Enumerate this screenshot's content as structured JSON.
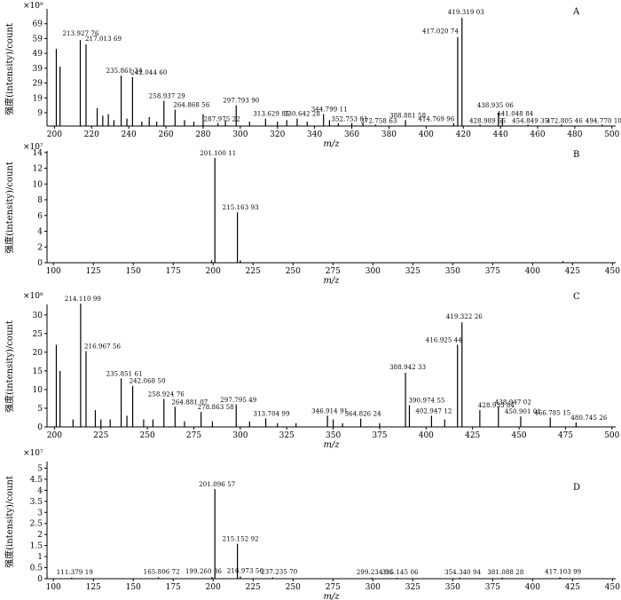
{
  "chart_data": [
    {
      "type": "bar",
      "panel": "A",
      "exponent_label": "×10⁹",
      "ylabel": "强度(intensity)/count",
      "xlabel": "m/z",
      "xlim": [
        196,
        502
      ],
      "ylim": [
        0,
        79
      ],
      "x_ticks": [
        "200",
        "220",
        "240",
        "260",
        "280",
        "300",
        "320",
        "340",
        "360",
        "380",
        "400",
        "420",
        "440",
        "460",
        "480",
        "500"
      ],
      "y_ticks": [
        "9",
        "19",
        "29",
        "39",
        "49",
        "59",
        "69"
      ],
      "peaks": [
        {
          "x": 201.0,
          "y": 52
        },
        {
          "x": 203.0,
          "y": 40
        },
        {
          "x": 213.9,
          "y": 58,
          "label": "213.927 76"
        },
        {
          "x": 217.0,
          "y": 55,
          "label": "217.013 69"
        },
        {
          "x": 223,
          "y": 12
        },
        {
          "x": 226,
          "y": 7
        },
        {
          "x": 229,
          "y": 8
        },
        {
          "x": 232,
          "y": 4
        },
        {
          "x": 235.9,
          "y": 34,
          "label": "235.861 34"
        },
        {
          "x": 239,
          "y": 5
        },
        {
          "x": 242.0,
          "y": 33,
          "label": "242.044 60"
        },
        {
          "x": 247,
          "y": 3
        },
        {
          "x": 251,
          "y": 6
        },
        {
          "x": 255,
          "y": 3
        },
        {
          "x": 258.9,
          "y": 17,
          "label": "258.937 29"
        },
        {
          "x": 264.9,
          "y": 11,
          "label": "264.868 56"
        },
        {
          "x": 270,
          "y": 4
        },
        {
          "x": 275,
          "y": 3
        },
        {
          "x": 280,
          "y": 8
        },
        {
          "x": 287.98,
          "y": 2,
          "label": "287.975 22"
        },
        {
          "x": 292,
          "y": 4
        },
        {
          "x": 297.8,
          "y": 14,
          "label": "297.793 90"
        },
        {
          "x": 305,
          "y": 3
        },
        {
          "x": 313.6,
          "y": 5,
          "label": "313.629 85"
        },
        {
          "x": 320,
          "y": 3
        },
        {
          "x": 325,
          "y": 4
        },
        {
          "x": 330.6,
          "y": 5,
          "label": "330.642 28"
        },
        {
          "x": 336,
          "y": 3
        },
        {
          "x": 344.8,
          "y": 8,
          "label": "344.799 11"
        },
        {
          "x": 348,
          "y": 4
        },
        {
          "x": 352.8,
          "y": 2,
          "label": "352.753 01"
        },
        {
          "x": 360,
          "y": 2
        },
        {
          "x": 366,
          "y": 2
        },
        {
          "x": 372.8,
          "y": 1,
          "label": "372.758 63"
        },
        {
          "x": 388.9,
          "y": 4,
          "label": "388.881 58"
        },
        {
          "x": 414.8,
          "y": 2,
          "label": "414.769 96"
        },
        {
          "x": 417.0,
          "y": 60,
          "label": "417.020 74"
        },
        {
          "x": 419.3,
          "y": 73,
          "label": "419.319 03"
        },
        {
          "x": 429.0,
          "y": 1,
          "label": "428.989 65"
        },
        {
          "x": 438.9,
          "y": 9,
          "label": "438.935 06"
        },
        {
          "x": 441.0,
          "y": 5,
          "label": "441.048 84"
        },
        {
          "x": 454.8,
          "y": 1,
          "label": "454.849 35"
        },
        {
          "x": 472.8,
          "y": 1,
          "label": "472.805 46"
        },
        {
          "x": 494.8,
          "y": 1,
          "label": "494.770 10"
        }
      ]
    },
    {
      "type": "bar",
      "panel": "B",
      "exponent_label": "×10⁷",
      "ylabel": "强度(intensity)/count",
      "xlabel": "m/z",
      "xlim": [
        96,
        452
      ],
      "ylim": [
        0,
        14.2
      ],
      "x_ticks": [
        "100",
        "125",
        "150",
        "175",
        "200",
        "225",
        "250",
        "275",
        "300",
        "325",
        "350",
        "375",
        "400",
        "425",
        "450"
      ],
      "y_ticks": [
        "0",
        "2",
        "4",
        "6",
        "8",
        "10",
        "12",
        "14"
      ],
      "peaks": [
        {
          "x": 199.0,
          "y": 0.3
        },
        {
          "x": 201.1,
          "y": 13.3,
          "label": "201.100 11"
        },
        {
          "x": 215.2,
          "y": 6.4,
          "label": "215.163 93"
        },
        {
          "x": 217.0,
          "y": 0.3
        },
        {
          "x": 419.0,
          "y": 0.2
        }
      ]
    },
    {
      "type": "bar",
      "panel": "C",
      "exponent_label": "×10⁸",
      "ylabel": "强度(intensity)/count",
      "xlabel": "m/z",
      "xlim": [
        196,
        502
      ],
      "ylim": [
        0,
        32.8
      ],
      "x_ticks": [
        "200",
        "225",
        "250",
        "275",
        "300",
        "325",
        "350",
        "375",
        "400",
        "425",
        "450",
        "475",
        "500"
      ],
      "y_ticks": [
        "0",
        "5",
        "10",
        "15",
        "20",
        "25",
        "30"
      ],
      "peaks": [
        {
          "x": 201.0,
          "y": 22
        },
        {
          "x": 203.0,
          "y": 15
        },
        {
          "x": 210,
          "y": 2
        },
        {
          "x": 214.1,
          "y": 33,
          "label": "214.110 99"
        },
        {
          "x": 217.0,
          "y": 20.3,
          "label": "216.967 56"
        },
        {
          "x": 222,
          "y": 4.5
        },
        {
          "x": 225,
          "y": 2
        },
        {
          "x": 230,
          "y": 2
        },
        {
          "x": 235.9,
          "y": 13,
          "label": "235.851 61"
        },
        {
          "x": 239,
          "y": 3
        },
        {
          "x": 242.1,
          "y": 11,
          "label": "242.068 50"
        },
        {
          "x": 248,
          "y": 2
        },
        {
          "x": 253,
          "y": 2
        },
        {
          "x": 258.9,
          "y": 7.5,
          "label": "258.924 76"
        },
        {
          "x": 264.9,
          "y": 5.4,
          "label": "264.881 07"
        },
        {
          "x": 270,
          "y": 1.5
        },
        {
          "x": 278.9,
          "y": 4,
          "label": "278.863 58"
        },
        {
          "x": 285,
          "y": 1.5
        },
        {
          "x": 297.8,
          "y": 6,
          "label": "297.795 49"
        },
        {
          "x": 305,
          "y": 1.5
        },
        {
          "x": 313.7,
          "y": 2.3,
          "label": "313.704 99"
        },
        {
          "x": 320,
          "y": 1
        },
        {
          "x": 330,
          "y": 1
        },
        {
          "x": 346.9,
          "y": 3,
          "label": "346.914 91"
        },
        {
          "x": 350,
          "y": 2
        },
        {
          "x": 355,
          "y": 1
        },
        {
          "x": 364.8,
          "y": 2.2,
          "label": "364.826 24"
        },
        {
          "x": 375,
          "y": 1
        },
        {
          "x": 388.9,
          "y": 14.5,
          "label": "388.942 33"
        },
        {
          "x": 391.0,
          "y": 5.8,
          "label": "390.974 55"
        },
        {
          "x": 402.9,
          "y": 3,
          "label": "402.947 12"
        },
        {
          "x": 410,
          "y": 2
        },
        {
          "x": 416.9,
          "y": 22,
          "label": "416.925 44"
        },
        {
          "x": 419.3,
          "y": 28,
          "label": "419.322 26"
        },
        {
          "x": 428.9,
          "y": 4.5,
          "label": "428.933 84"
        },
        {
          "x": 438.9,
          "y": 5.4,
          "label": "438.947 02"
        },
        {
          "x": 450.9,
          "y": 2.8,
          "label": "450.901 01"
        },
        {
          "x": 466.8,
          "y": 2.5,
          "label": "466.785 15"
        },
        {
          "x": 480.7,
          "y": 1.2,
          "label": "480.745 26"
        }
      ]
    },
    {
      "type": "bar",
      "panel": "D",
      "exponent_label": "×10⁷",
      "ylabel": "强度(intensity)/count",
      "xlabel": "m/z",
      "xlim": [
        96,
        452
      ],
      "ylim": [
        0,
        5.3
      ],
      "x_ticks": [
        "100",
        "125",
        "150",
        "175",
        "200",
        "225",
        "250",
        "275",
        "300",
        "325",
        "350",
        "375",
        "400",
        "425",
        "450"
      ],
      "y_ticks": [
        "0",
        "0.5",
        "1",
        "1.5",
        "2",
        "2.5",
        "3",
        "3.5",
        "4",
        "4.5",
        "5"
      ],
      "peaks": [
        {
          "x": 111.4,
          "y": 0.05,
          "label": "111.379 19"
        },
        {
          "x": 165.8,
          "y": 0.06,
          "label": "165.806 72"
        },
        {
          "x": 199.3,
          "y": 0.08,
          "label": "199.260 36"
        },
        {
          "x": 201.1,
          "y": 4.05,
          "label": "201.096 57"
        },
        {
          "x": 215.2,
          "y": 1.58,
          "label": "215.152 92"
        },
        {
          "x": 217.0,
          "y": 0.1,
          "label": "216.973 56"
        },
        {
          "x": 237.2,
          "y": 0.06,
          "label": "237.235 70"
        },
        {
          "x": 299.2,
          "y": 0.05,
          "label": "299.234 96"
        },
        {
          "x": 315.1,
          "y": 0.04,
          "label": "315.145 06"
        },
        {
          "x": 354.3,
          "y": 0.05,
          "label": "354.340 94"
        },
        {
          "x": 381.1,
          "y": 0.05,
          "label": "381.088 28"
        },
        {
          "x": 417.1,
          "y": 0.06,
          "label": "417.103 99"
        }
      ]
    }
  ]
}
